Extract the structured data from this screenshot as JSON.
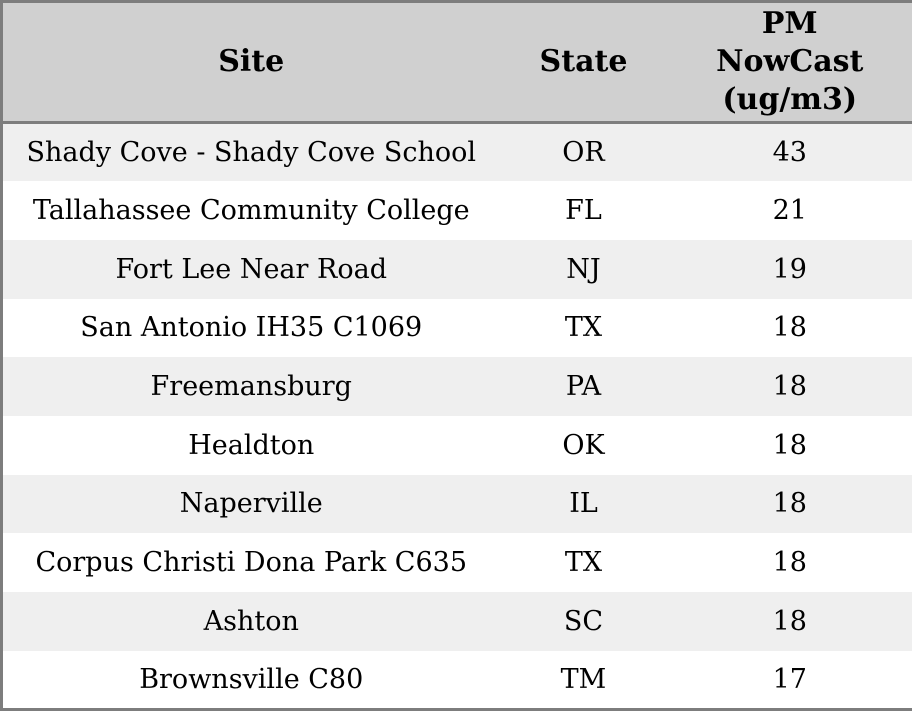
{
  "colors": {
    "border_color": "#7d7d7d",
    "header_bg": "#d0d0d0",
    "row_odd_bg": "#efefef",
    "row_even_bg": "#ffffff",
    "text_color": "#000000"
  },
  "table": {
    "columns": [
      {
        "id": "site",
        "label": "Site"
      },
      {
        "id": "state",
        "label": "State"
      },
      {
        "id": "pm_nowcast",
        "label": "PM NowCast (ug/m3)"
      }
    ],
    "rows": [
      {
        "site": "Shady Cove - Shady Cove School",
        "state": "OR",
        "pm_nowcast": "43"
      },
      {
        "site": "Tallahassee Community College",
        "state": "FL",
        "pm_nowcast": "21"
      },
      {
        "site": "Fort Lee Near Road",
        "state": "NJ",
        "pm_nowcast": "19"
      },
      {
        "site": "San Antonio IH35 C1069",
        "state": "TX",
        "pm_nowcast": "18"
      },
      {
        "site": "Freemansburg",
        "state": "PA",
        "pm_nowcast": "18"
      },
      {
        "site": "Healdton",
        "state": "OK",
        "pm_nowcast": "18"
      },
      {
        "site": "Naperville",
        "state": "IL",
        "pm_nowcast": "18"
      },
      {
        "site": "Corpus Christi Dona Park C635",
        "state": "TX",
        "pm_nowcast": "18"
      },
      {
        "site": "Ashton",
        "state": "SC",
        "pm_nowcast": "18"
      },
      {
        "site": "Brownsville C80",
        "state": "TM",
        "pm_nowcast": "17"
      }
    ]
  }
}
